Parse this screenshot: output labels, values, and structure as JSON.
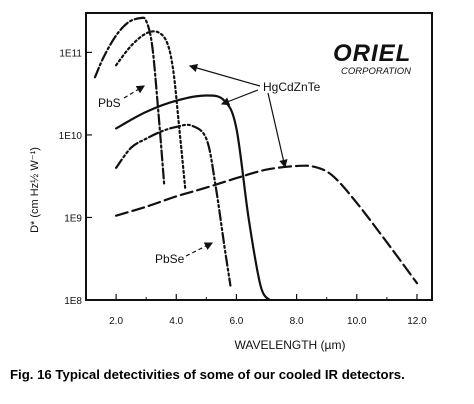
{
  "caption": "Fig. 16 Typical detectivities of some of our cooled IR detectors.",
  "logo": {
    "name": "ORIEL",
    "sub": "CORPORATION"
  },
  "chart_data": {
    "type": "line",
    "title": "",
    "xlabel": "WAVELENGTH (µm)",
    "ylabel": "D* (cm Hz½ W⁻¹)",
    "yscale": "log",
    "xlim": [
      1.0,
      12.5
    ],
    "ylim": [
      100000000.0,
      300000000000.0
    ],
    "xticks": [
      {
        "v": 2,
        "label": "2.0"
      },
      {
        "v": 4,
        "label": "4.0"
      },
      {
        "v": 6,
        "label": "6.0"
      },
      {
        "v": 8,
        "label": "8.0"
      },
      {
        "v": 10,
        "label": "10.0"
      },
      {
        "v": 12,
        "label": "12.0"
      }
    ],
    "yticks": [
      {
        "v": 100000000.0,
        "label": "1E8"
      },
      {
        "v": 1000000000.0,
        "label": "1E9"
      },
      {
        "v": 10000000000.0,
        "label": "1E10"
      },
      {
        "v": 100000000000.0,
        "label": "1E11"
      }
    ],
    "annotations": [
      "PbS",
      "PbSe",
      "HgCdZnTe"
    ],
    "series": [
      {
        "name": "PbS",
        "dash": "dashdot",
        "x": [
          1.3,
          1.6,
          2.0,
          2.4,
          2.8,
          3.0,
          3.2,
          3.4,
          3.6
        ],
        "y": [
          50000000000.0,
          90000000000.0,
          160000000000.0,
          230000000000.0,
          260000000000.0,
          240000000000.0,
          120000000000.0,
          20000000000.0,
          2500000000.0
        ]
      },
      {
        "name": "HgCdZnTe",
        "dash": "dotted",
        "x": [
          2.0,
          2.5,
          3.0,
          3.4,
          3.7,
          3.9,
          4.1,
          4.3
        ],
        "y": [
          70000000000.0,
          120000000000.0,
          170000000000.0,
          175000000000.0,
          130000000000.0,
          60000000000.0,
          12000000000.0,
          2200000000.0
        ]
      },
      {
        "name": "HgCdZnTe",
        "dash": "solid",
        "x": [
          2.0,
          3.0,
          4.0,
          5.0,
          5.6,
          6.0,
          6.4,
          6.8,
          7.1
        ],
        "y": [
          12000000000.0,
          19000000000.0,
          26000000000.0,
          30000000000.0,
          26000000000.0,
          12000000000.0,
          1000000000.0,
          150000000.0,
          100000000.0
        ]
      },
      {
        "name": "PbSe",
        "dash": "dashdotdot",
        "x": [
          2.0,
          2.5,
          3.0,
          3.5,
          4.0,
          4.5,
          5.0,
          5.3,
          5.6,
          5.8
        ],
        "y": [
          4000000000.0,
          7000000000.0,
          9000000000.0,
          11000000000.0,
          12500000000.0,
          13000000000.0,
          9000000000.0,
          2500000000.0,
          450000000.0,
          150000000.0
        ]
      },
      {
        "name": "HgCdZnTe",
        "dash": "longdash",
        "x": [
          2.0,
          3.0,
          4.0,
          5.0,
          6.0,
          7.0,
          8.0,
          8.6,
          9.2,
          10.0,
          11.0,
          12.0
        ],
        "y": [
          1050000000.0,
          1350000000.0,
          1800000000.0,
          2300000000.0,
          3000000000.0,
          3800000000.0,
          4200000000.0,
          4100000000.0,
          3200000000.0,
          1500000000.0,
          500000000.0,
          160000000.0
        ]
      }
    ]
  }
}
